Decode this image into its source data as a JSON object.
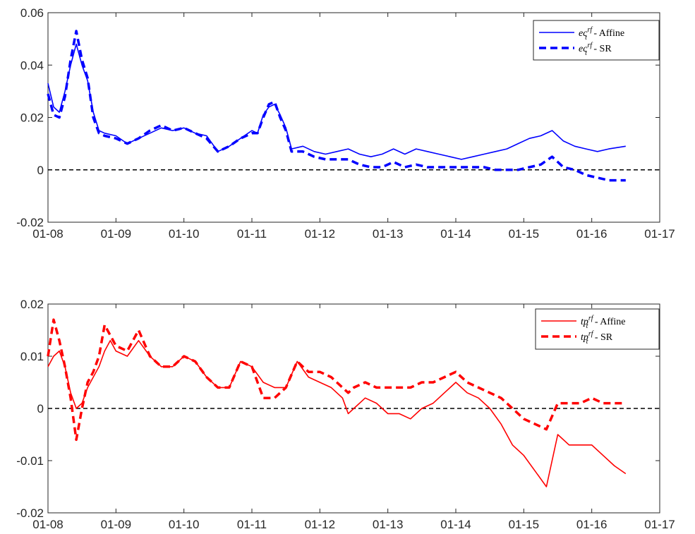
{
  "chart_data": [
    {
      "type": "line",
      "x_ticks": [
        "01-08",
        "01-09",
        "01-10",
        "01-11",
        "01-12",
        "01-13",
        "01-14",
        "01-15",
        "01-16",
        "01-17"
      ],
      "y_ticks": [
        "-0.02",
        "0",
        "0.02",
        "0.04",
        "0.06"
      ],
      "ylim": [
        -0.02,
        0.06
      ],
      "xlim": [
        "2008-01",
        "2017-01"
      ],
      "zero_line": true,
      "legend_position": "top-right",
      "series": [
        {
          "name": "ec_t^rf - Affine",
          "name_math": "ec",
          "name_sup": "rf",
          "name_sub": "t",
          "name_suffix": " - Affine",
          "style": "solid",
          "color": "#0000ff",
          "x": [
            "2008-01",
            "2008-02",
            "2008-03",
            "2008-04",
            "2008-05",
            "2008-06",
            "2008-07",
            "2008-08",
            "2008-09",
            "2008-10",
            "2008-11",
            "2009-01",
            "2009-03",
            "2009-05",
            "2009-07",
            "2009-09",
            "2009-11",
            "2010-01",
            "2010-03",
            "2010-05",
            "2010-07",
            "2010-09",
            "2010-11",
            "2011-01",
            "2011-02",
            "2011-03",
            "2011-04",
            "2011-05",
            "2011-06",
            "2011-07",
            "2011-08",
            "2011-10",
            "2011-12",
            "2012-02",
            "2012-04",
            "2012-06",
            "2012-08",
            "2012-10",
            "2012-12",
            "2013-02",
            "2013-04",
            "2013-06",
            "2013-08",
            "2013-10",
            "2013-12",
            "2014-02",
            "2014-04",
            "2014-06",
            "2014-08",
            "2014-10",
            "2014-12",
            "2015-02",
            "2015-04",
            "2015-06",
            "2015-08",
            "2015-10",
            "2015-12",
            "2016-02",
            "2016-04",
            "2016-07"
          ],
          "y": [
            0.033,
            0.024,
            0.022,
            0.03,
            0.04,
            0.048,
            0.04,
            0.034,
            0.022,
            0.015,
            0.014,
            0.013,
            0.01,
            0.012,
            0.014,
            0.016,
            0.015,
            0.016,
            0.014,
            0.013,
            0.007,
            0.009,
            0.012,
            0.015,
            0.014,
            0.021,
            0.024,
            0.025,
            0.021,
            0.016,
            0.008,
            0.009,
            0.007,
            0.006,
            0.007,
            0.008,
            0.006,
            0.005,
            0.006,
            0.008,
            0.006,
            0.008,
            0.007,
            0.006,
            0.005,
            0.004,
            0.005,
            0.006,
            0.007,
            0.008,
            0.01,
            0.012,
            0.013,
            0.015,
            0.011,
            0.009,
            0.008,
            0.007,
            0.008,
            0.009
          ]
        },
        {
          "name": "ec_t^rf - SR",
          "name_math": "ec",
          "name_sup": "rf",
          "name_sub": "t",
          "name_suffix": " - SR",
          "style": "dashed",
          "color": "#0000ff",
          "x": [
            "2008-01",
            "2008-02",
            "2008-03",
            "2008-04",
            "2008-05",
            "2008-06",
            "2008-07",
            "2008-08",
            "2008-09",
            "2008-10",
            "2008-11",
            "2009-01",
            "2009-03",
            "2009-05",
            "2009-07",
            "2009-09",
            "2009-11",
            "2010-01",
            "2010-03",
            "2010-05",
            "2010-07",
            "2010-09",
            "2010-11",
            "2011-01",
            "2011-02",
            "2011-03",
            "2011-04",
            "2011-05",
            "2011-06",
            "2011-07",
            "2011-08",
            "2011-10",
            "2011-12",
            "2012-02",
            "2012-04",
            "2012-06",
            "2012-08",
            "2012-10",
            "2012-12",
            "2013-02",
            "2013-04",
            "2013-06",
            "2013-08",
            "2013-10",
            "2013-12",
            "2014-02",
            "2014-04",
            "2014-06",
            "2014-08",
            "2014-10",
            "2014-12",
            "2015-02",
            "2015-04",
            "2015-06",
            "2015-08",
            "2015-10",
            "2015-12",
            "2016-02",
            "2016-04",
            "2016-07"
          ],
          "y": [
            0.029,
            0.021,
            0.02,
            0.028,
            0.042,
            0.053,
            0.042,
            0.035,
            0.02,
            0.014,
            0.013,
            0.012,
            0.01,
            0.012,
            0.015,
            0.017,
            0.015,
            0.016,
            0.014,
            0.012,
            0.007,
            0.009,
            0.012,
            0.014,
            0.014,
            0.02,
            0.025,
            0.026,
            0.02,
            0.015,
            0.007,
            0.007,
            0.005,
            0.004,
            0.004,
            0.004,
            0.002,
            0.001,
            0.001,
            0.003,
            0.001,
            0.002,
            0.001,
            0.001,
            0.001,
            0.001,
            0.001,
            0.001,
            0.0,
            0.0,
            0.0,
            0.001,
            0.002,
            0.005,
            0.001,
            0.0,
            -0.002,
            -0.003,
            -0.004,
            -0.004
          ]
        }
      ]
    },
    {
      "type": "line",
      "x_ticks": [
        "01-08",
        "01-09",
        "01-10",
        "01-11",
        "01-12",
        "01-13",
        "01-14",
        "01-15",
        "01-16",
        "01-17"
      ],
      "y_ticks": [
        "-0.02",
        "-0.01",
        "0",
        "0.01",
        "0.02"
      ],
      "ylim": [
        -0.02,
        0.02
      ],
      "xlim": [
        "2008-01",
        "2017-01"
      ],
      "zero_line": true,
      "legend_position": "top-right",
      "series": [
        {
          "name": "tp_t^rf - Affine",
          "name_math": "tp",
          "name_sup": "rf",
          "name_sub": "t",
          "name_suffix": " - Affine",
          "style": "solid",
          "color": "#ff0000",
          "x": [
            "2008-01",
            "2008-02",
            "2008-03",
            "2008-04",
            "2008-05",
            "2008-06",
            "2008-07",
            "2008-08",
            "2008-09",
            "2008-10",
            "2008-11",
            "2008-12",
            "2009-01",
            "2009-03",
            "2009-05",
            "2009-07",
            "2009-09",
            "2009-11",
            "2010-01",
            "2010-03",
            "2010-05",
            "2010-07",
            "2010-09",
            "2010-11",
            "2011-01",
            "2011-03",
            "2011-05",
            "2011-07",
            "2011-09",
            "2011-11",
            "2012-01",
            "2012-03",
            "2012-05",
            "2012-06",
            "2012-07",
            "2012-09",
            "2012-11",
            "2013-01",
            "2013-03",
            "2013-05",
            "2013-07",
            "2013-09",
            "2013-11",
            "2014-01",
            "2014-03",
            "2014-05",
            "2014-07",
            "2014-09",
            "2014-11",
            "2015-01",
            "2015-03",
            "2015-05",
            "2015-07",
            "2015-09",
            "2015-11",
            "2016-01",
            "2016-03",
            "2016-05",
            "2016-07"
          ],
          "y": [
            0.008,
            0.01,
            0.011,
            0.008,
            0.003,
            0.0,
            0.001,
            0.004,
            0.006,
            0.008,
            0.011,
            0.013,
            0.011,
            0.01,
            0.013,
            0.01,
            0.008,
            0.008,
            0.01,
            0.009,
            0.006,
            0.004,
            0.004,
            0.009,
            0.008,
            0.005,
            0.004,
            0.004,
            0.009,
            0.006,
            0.005,
            0.004,
            0.002,
            -0.001,
            0.0,
            0.002,
            0.001,
            -0.001,
            -0.001,
            -0.002,
            0.0,
            0.001,
            0.003,
            0.005,
            0.003,
            0.002,
            0.0,
            -0.003,
            -0.007,
            -0.009,
            -0.012,
            -0.015,
            -0.005,
            -0.007,
            -0.007,
            -0.007,
            -0.009,
            -0.011,
            -0.0125
          ]
        },
        {
          "name": "tp_t^rf - SR",
          "name_math": "tp",
          "name_sup": "rf",
          "name_sub": "t",
          "name_suffix": " - SR",
          "style": "dashed",
          "color": "#ff0000",
          "x": [
            "2008-01",
            "2008-02",
            "2008-03",
            "2008-04",
            "2008-05",
            "2008-06",
            "2008-07",
            "2008-08",
            "2008-09",
            "2008-10",
            "2008-11",
            "2008-12",
            "2009-01",
            "2009-03",
            "2009-05",
            "2009-07",
            "2009-09",
            "2009-11",
            "2010-01",
            "2010-03",
            "2010-05",
            "2010-07",
            "2010-09",
            "2010-11",
            "2011-01",
            "2011-03",
            "2011-05",
            "2011-07",
            "2011-09",
            "2011-11",
            "2012-01",
            "2012-03",
            "2012-05",
            "2012-06",
            "2012-07",
            "2012-09",
            "2012-11",
            "2013-01",
            "2013-03",
            "2013-05",
            "2013-07",
            "2013-09",
            "2013-11",
            "2014-01",
            "2014-03",
            "2014-05",
            "2014-07",
            "2014-09",
            "2014-11",
            "2015-01",
            "2015-03",
            "2015-05",
            "2015-07",
            "2015-09",
            "2015-11",
            "2016-01",
            "2016-03",
            "2016-05",
            "2016-07"
          ],
          "y": [
            0.01,
            0.017,
            0.013,
            0.008,
            0.002,
            -0.006,
            0.0,
            0.005,
            0.007,
            0.01,
            0.016,
            0.014,
            0.012,
            0.011,
            0.015,
            0.01,
            0.008,
            0.008,
            0.01,
            0.009,
            0.006,
            0.004,
            0.004,
            0.009,
            0.008,
            0.002,
            0.002,
            0.004,
            0.009,
            0.007,
            0.007,
            0.006,
            0.004,
            0.003,
            0.004,
            0.005,
            0.004,
            0.004,
            0.004,
            0.004,
            0.005,
            0.005,
            0.006,
            0.007,
            0.005,
            0.004,
            0.003,
            0.002,
            0.0,
            -0.002,
            -0.003,
            -0.004,
            0.001,
            0.001,
            0.001,
            0.002,
            0.001,
            0.001,
            0.001
          ]
        }
      ]
    }
  ]
}
